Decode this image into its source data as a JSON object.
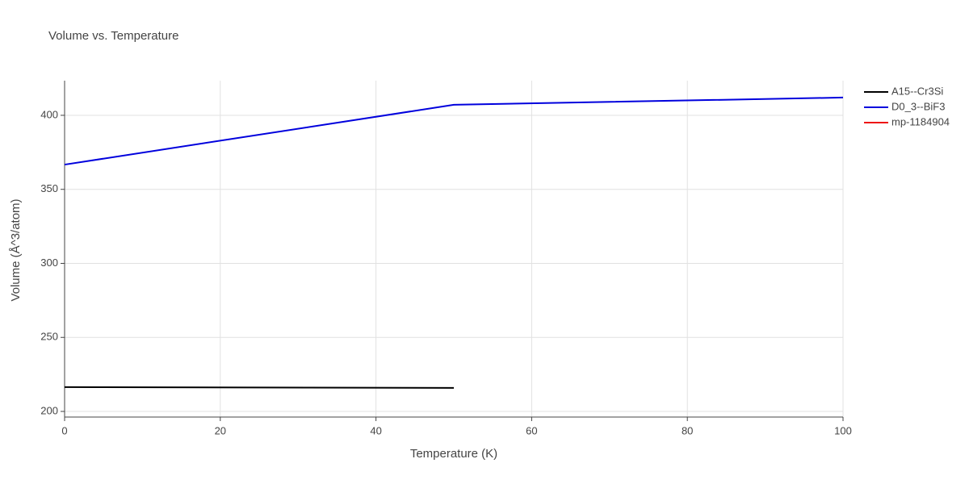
{
  "chart_data": {
    "type": "line",
    "title": "Volume vs. Temperature",
    "x_label": "Temperature (K)",
    "y_label": "Volume (Å^3/atom)",
    "series": [
      {
        "name": "A15--Cr3Si",
        "color": "#000000",
        "x": [
          0,
          50
        ],
        "values": [
          216.4,
          215.9
        ]
      },
      {
        "name": "D0_3--BiF3",
        "color": "#0000dd",
        "x": [
          0,
          50,
          100
        ],
        "values": [
          366.7,
          407.1,
          412.0
        ]
      },
      {
        "name": "mp-1184904",
        "color": "#ee1111",
        "x": [],
        "values": []
      }
    ],
    "xlim": [
      0,
      100
    ],
    "xticks": [
      0,
      20,
      40,
      60,
      80,
      100
    ],
    "ylim": [
      196.2,
      423.4
    ],
    "yticks": [
      200,
      250,
      300,
      350,
      400
    ],
    "grid": true,
    "legend": "top-right"
  }
}
